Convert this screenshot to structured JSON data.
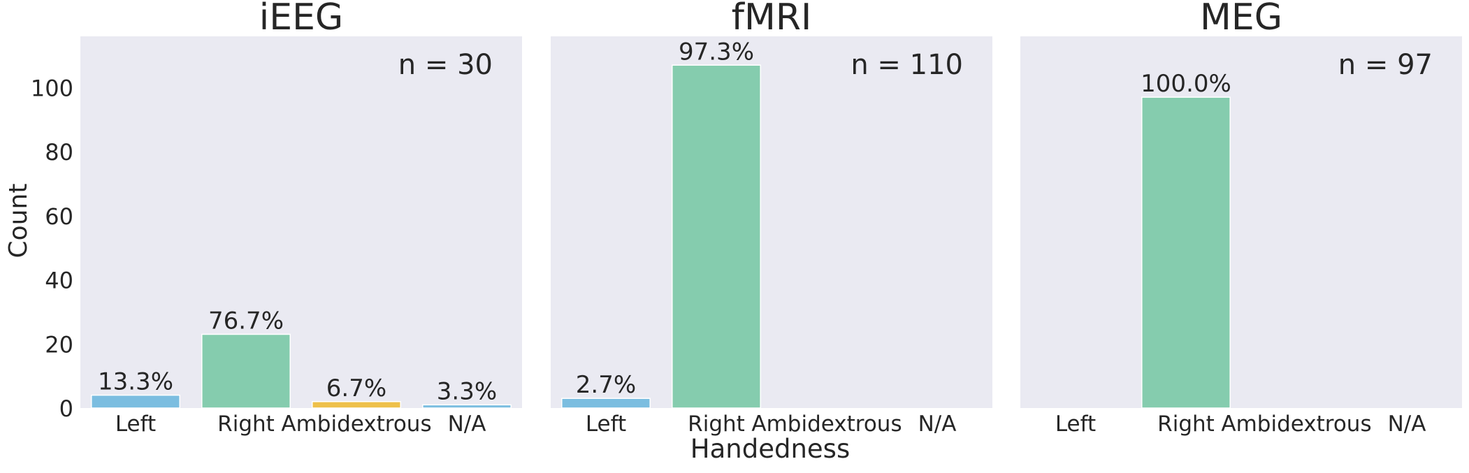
{
  "figure": {
    "ylabel": "Count",
    "xlabel": "Handedness"
  },
  "colors": {
    "Left": "#7bbde0",
    "Right": "#85ccae",
    "Ambidextrous": "#eec04a",
    "N/A": "#7bbde0",
    "panel_background": "#eaeaf2"
  },
  "chart_data": [
    {
      "type": "bar",
      "title": "iEEG",
      "annotation": "n = 30",
      "categories": [
        "Left",
        "Right",
        "Ambidextrous",
        "N/A"
      ],
      "values": [
        4,
        23,
        2,
        1
      ],
      "data_labels": [
        "13.3%",
        "76.7%",
        "6.7%",
        "3.3%"
      ],
      "xlabel": "",
      "ylabel": "Count",
      "ylim": [
        0,
        116
      ],
      "yticks": [
        0,
        20,
        40,
        60,
        80,
        100
      ],
      "grid": false
    },
    {
      "type": "bar",
      "title": "fMRI",
      "annotation": "n = 110",
      "categories": [
        "Left",
        "Right",
        "Ambidextrous",
        "N/A"
      ],
      "values": [
        3,
        107,
        0,
        0
      ],
      "data_labels": [
        "2.7%",
        "97.3%",
        "",
        ""
      ],
      "xlabel": "Handedness",
      "ylabel": "",
      "ylim": [
        0,
        116
      ],
      "grid": false
    },
    {
      "type": "bar",
      "title": "MEG",
      "annotation": "n = 97",
      "categories": [
        "Left",
        "Right",
        "Ambidextrous",
        "N/A"
      ],
      "values": [
        0,
        97,
        0,
        0
      ],
      "data_labels": [
        "",
        "100.0%",
        "",
        ""
      ],
      "xlabel": "",
      "ylabel": "",
      "ylim": [
        0,
        116
      ],
      "grid": false
    }
  ]
}
